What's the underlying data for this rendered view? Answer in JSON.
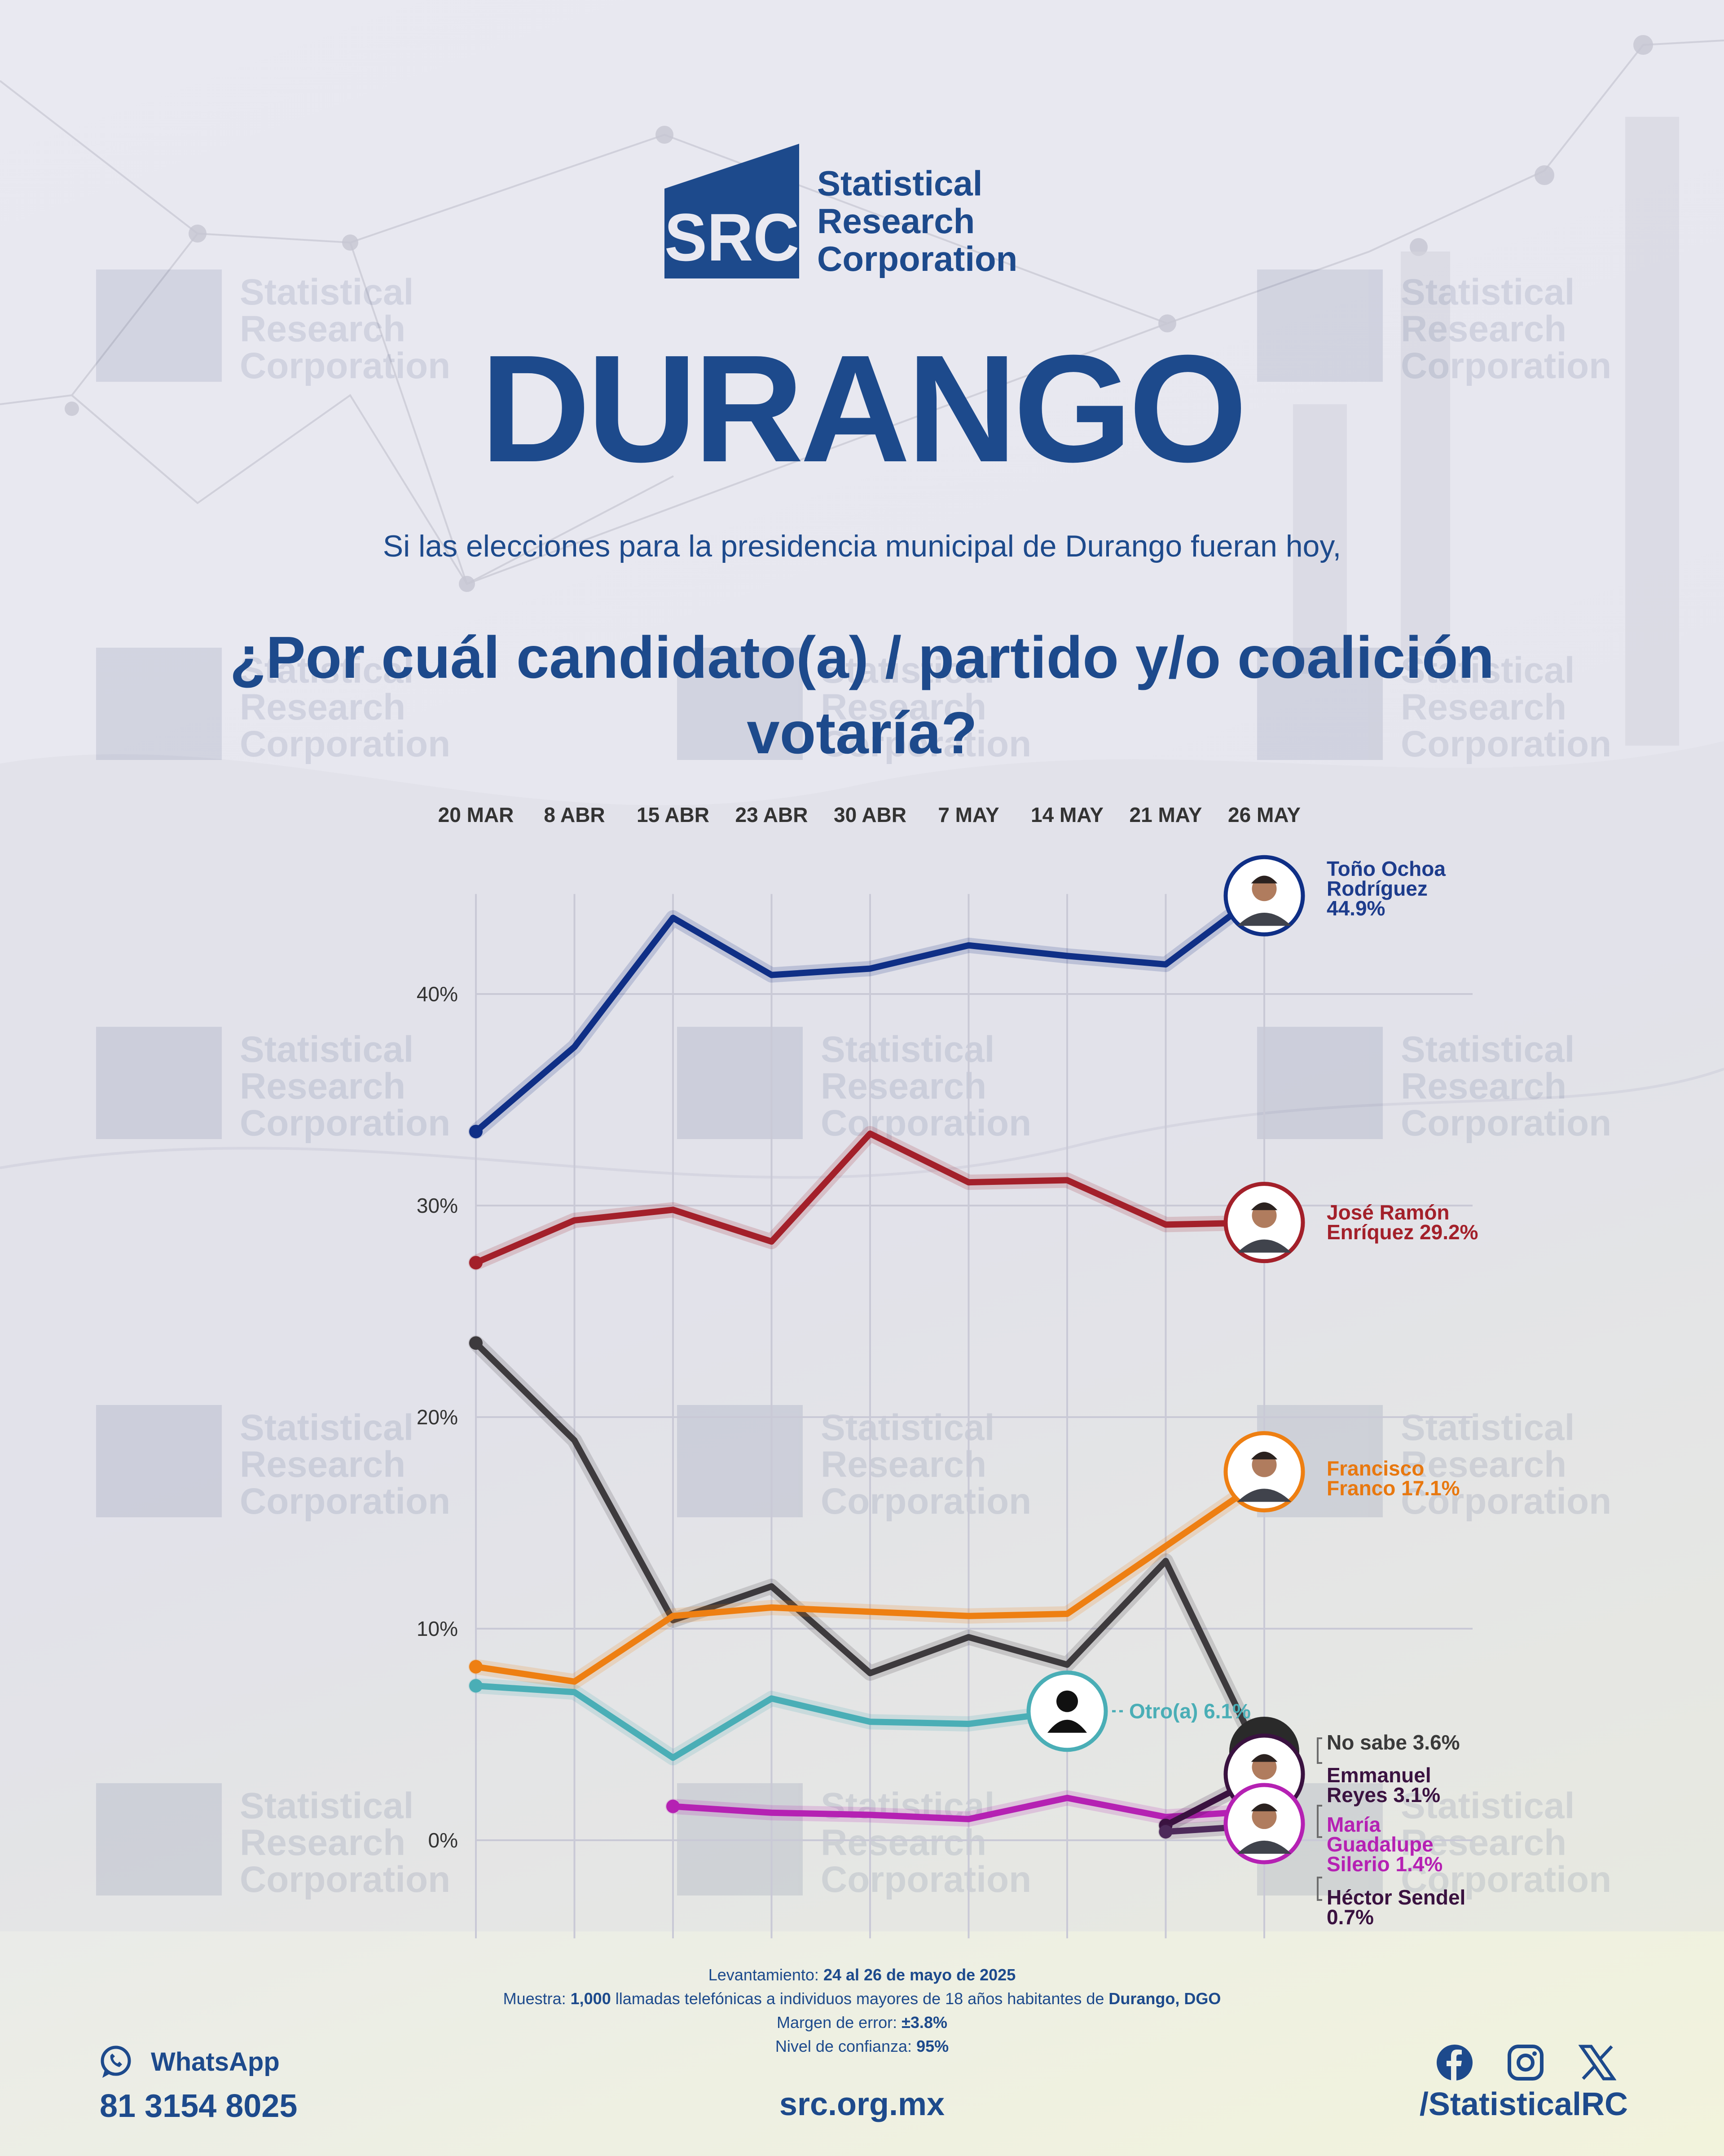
{
  "brand": {
    "logo_mark": "SRC",
    "name_lines": "Statistical\nResearch\nCorporation"
  },
  "state": "DURANGO",
  "intro": "Si las elecciones para la presidencia municipal de Durango fueran hoy,",
  "question": "¿Por cuál candidato(a) / partido y/o coalición votaría?",
  "chart_data": {
    "type": "line",
    "title": "",
    "xlabel": "",
    "ylabel": "",
    "x": [
      "20 MAR",
      "8 ABR",
      "15 ABR",
      "23 ABR",
      "30 ABR",
      "7 MAY",
      "14 MAY",
      "21 MAY",
      "26 MAY"
    ],
    "ylim": [
      -4,
      46
    ],
    "y_ticks": [
      0,
      10,
      20,
      30,
      40
    ],
    "y_tick_labels": [
      "0%",
      "10%",
      "20%",
      "30%",
      "40%"
    ],
    "grid": true,
    "legend": "labels at line ends, right",
    "series": [
      {
        "name": "Toño Ochoa Rodríguez",
        "value_label": "44.9%",
        "label_lines": [
          "Toño Ochoa",
          "Rodríguez",
          "44.9%"
        ],
        "color": "#0f2f86",
        "label_color": "#1d3c8c",
        "marker": "avatar-icon",
        "values": [
          33.5,
          37.5,
          43.6,
          40.9,
          41.2,
          42.3,
          41.8,
          41.4,
          44.9
        ]
      },
      {
        "name": "José Ramón Enríquez",
        "value_label": "29.2%",
        "label_lines": [
          "José Ramón",
          "Enríquez 29.2%"
        ],
        "color": "#a3202a",
        "label_color": "#a3202a",
        "marker": "avatar-icon",
        "values": [
          27.3,
          29.3,
          29.8,
          28.3,
          33.4,
          31.1,
          31.2,
          29.1,
          29.2
        ]
      },
      {
        "name": "Francisco Franco",
        "value_label": "17.1%",
        "label_lines": [
          "Francisco",
          "Franco 17.1%"
        ],
        "color": "#ee7f12",
        "label_color": "#e8780f",
        "marker": "avatar-icon",
        "values": [
          8.2,
          7.5,
          10.6,
          11.0,
          10.8,
          10.6,
          10.7,
          13.9,
          17.1
        ]
      },
      {
        "name": "No sabe",
        "value_label": "3.6%",
        "label_lines": [
          "No sabe 3.6%"
        ],
        "color": "#3d3a3d",
        "label_color": "#3a3a3a",
        "marker": "none",
        "values": [
          23.5,
          18.9,
          10.4,
          12.0,
          7.9,
          9.6,
          8.3,
          13.2,
          3.6
        ]
      },
      {
        "name": "Otro(a)",
        "value_label": "6.1%",
        "label_lines": [
          "Otro(a) 6.1%"
        ],
        "color": "#4aaeb6",
        "label_color": "#4aaeb6",
        "marker": "person-icon",
        "values": [
          7.3,
          7.0,
          3.9,
          6.7,
          5.6,
          5.5,
          6.1,
          null,
          null
        ]
      },
      {
        "name": "Emmanuel Reyes",
        "value_label": "3.1%",
        "label_lines": [
          "Emmanuel",
          "Reyes 3.1%"
        ],
        "color": "#3a1240",
        "label_color": "#3a1240",
        "marker": "avatar-icon",
        "values": [
          null,
          null,
          null,
          null,
          null,
          null,
          null,
          0.7,
          3.1
        ]
      },
      {
        "name": "María Guadalupe Silerio",
        "value_label": "1.4%",
        "label_lines": [
          "María",
          "Guadalupe",
          "Silerio 1.4%"
        ],
        "color": "#b521b3",
        "label_color": "#b521b3",
        "marker": "avatar-icon",
        "values": [
          null,
          null,
          1.6,
          1.3,
          1.2,
          1.0,
          2.0,
          1.1,
          1.4
        ]
      },
      {
        "name": "Héctor Sendel",
        "value_label": "0.7%",
        "label_lines": [
          "Héctor Sendel",
          "0.7%"
        ],
        "color": "#4d2a5a",
        "label_color": "#3a1240",
        "marker": "avatar-icon",
        "values": [
          null,
          null,
          null,
          null,
          null,
          null,
          null,
          0.4,
          0.7
        ]
      }
    ]
  },
  "footer": {
    "field_label": "Levantamiento: ",
    "field_value": "24 al 26 de mayo de 2025",
    "sample_label": "Muestra: ",
    "sample_value": "1,000",
    "sample_text": " llamadas telefónicas a individuos mayores de 18 años habitantes de ",
    "sample_place": "Durango, DGO",
    "error_label": "Margen de error: ",
    "error_value": "±3.8%",
    "conf_label": "Nivel de confianza: ",
    "conf_value": "95%"
  },
  "contact": {
    "whatsapp_label": "WhatsApp",
    "phone": "81 3154 8025",
    "site": "src.org.mx",
    "handle": "/StatisticalRC",
    "icons": [
      "whatsapp-icon",
      "facebook-icon",
      "instagram-icon",
      "x-icon"
    ]
  },
  "watermark": {
    "mark": "SRC",
    "text": "Statistical\nResearch\nCorporation"
  },
  "colors": {
    "brand_blue": "#1d4a8c",
    "grid": "#c9c9d6",
    "axis_text": "#333333"
  }
}
